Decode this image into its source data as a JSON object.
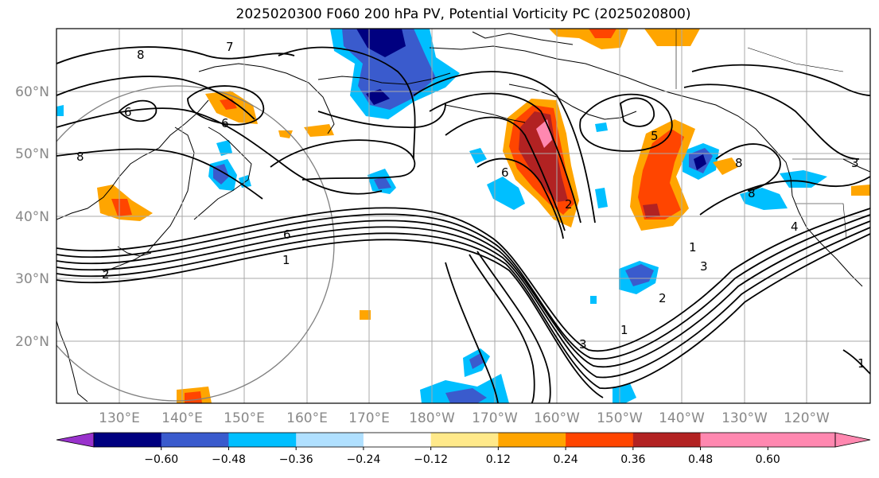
{
  "title": "2025020300 F060 200 hPa PV, Potential Vorticity PC (2025020800)",
  "map": {
    "lat_labels": [
      "60°N",
      "50°N",
      "40°N",
      "30°N",
      "20°N"
    ],
    "lon_labels": [
      "130°E",
      "140°E",
      "150°E",
      "160°E",
      "170°E",
      "180°W",
      "170°W",
      "160°W",
      "150°W",
      "140°W",
      "130°W",
      "120°W"
    ],
    "contour_labels": [
      "8",
      "7",
      "6",
      "8",
      "6",
      "1",
      "2",
      "6",
      "5",
      "8",
      "8",
      "1",
      "2",
      "3",
      "1",
      "2",
      "3",
      "4",
      "1",
      "3",
      "6"
    ],
    "gridline_color": "#a9a9a9"
  },
  "colorbar": {
    "ticks": [
      "−0.60",
      "−0.48",
      "−0.36",
      "−0.24",
      "−0.12",
      "0.12",
      "0.24",
      "0.36",
      "0.48",
      "0.60"
    ],
    "colors": [
      "#9932cc",
      "#000080",
      "#3a5bcd",
      "#00bfff",
      "#b0e0ff",
      "#ffffff",
      "#ffe98a",
      "#ffa500",
      "#ff4500",
      "#b22222",
      "#ff88b0",
      "#ff88b0"
    ]
  },
  "chart_data": {
    "type": "heatmap",
    "title": "2025020300 F060 200 hPa PV, Potential Vorticity PC (2025020800)",
    "x_ticks": [
      "130°E",
      "140°E",
      "150°E",
      "160°E",
      "170°E",
      "180°W",
      "170°W",
      "160°W",
      "150°W",
      "140°W",
      "130°W",
      "120°W"
    ],
    "y_ticks": [
      "20°N",
      "30°N",
      "40°N",
      "50°N",
      "60°N"
    ],
    "colorbar_levels": [
      -0.6,
      -0.48,
      -0.36,
      -0.24,
      -0.12,
      0.12,
      0.24,
      0.36,
      0.48,
      0.6
    ],
    "colorbar_extend": "both",
    "contour_field": "200 hPa PV",
    "contour_labels_visible": [
      1,
      2,
      3,
      4,
      5,
      6,
      7,
      8
    ]
  }
}
